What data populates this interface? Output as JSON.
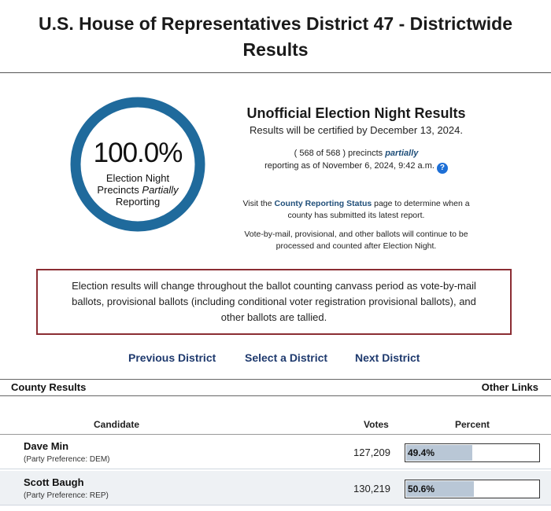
{
  "page": {
    "title_line1": "U.S. House of Representatives District 47 - Districtwide",
    "title_line2": "Results"
  },
  "gauge": {
    "percent_text": "100.0%",
    "fraction": 1.0,
    "line1": "Election Night",
    "line2_prefix": "Precincts ",
    "line2_italic": "Partially",
    "line3": "Reporting",
    "ring_color": "#1f6a9c"
  },
  "info": {
    "heading": "Unofficial Election Night Results",
    "certified": "Results will be certified by December 13, 2024.",
    "precincts_prefix": "( 568 of 568 ) precincts ",
    "precincts_emph": "partially",
    "reporting_as_of": "reporting as of November 6, 2024, 9:42 a.m.",
    "help_icon": "?",
    "visit_prefix": "Visit the ",
    "visit_link": "County Reporting Status",
    "visit_suffix": " page to determine when a",
    "visit_line2": "county has submitted its latest report.",
    "vbm_line1": "Vote-by-mail, provisional, and other ballots will continue to be",
    "vbm_line2": "processed and counted after Election Night."
  },
  "notice": {
    "line1": "Election results will change throughout the ballot counting canvass period as vote-by-mail",
    "line2": "ballots, provisional ballots (including conditional voter registration provisional ballots), and",
    "line3": "other ballots are tallied.",
    "border_color": "#8b2d33"
  },
  "nav": {
    "previous": "Previous District",
    "select": "Select a District",
    "next": "Next District"
  },
  "results_bar": {
    "county_results": "County Results",
    "other_links": "Other Links"
  },
  "table": {
    "headers": {
      "candidate": "Candidate",
      "votes": "Votes",
      "percent": "Percent"
    },
    "rows": [
      {
        "name": "Dave Min",
        "party": "(Party Preference: DEM)",
        "votes": "127,209",
        "percent": "49.4%",
        "fraction": 0.494
      },
      {
        "name": "Scott Baugh",
        "party": "(Party Preference: REP)",
        "votes": "130,219",
        "percent": "50.6%",
        "fraction": 0.506
      }
    ]
  }
}
